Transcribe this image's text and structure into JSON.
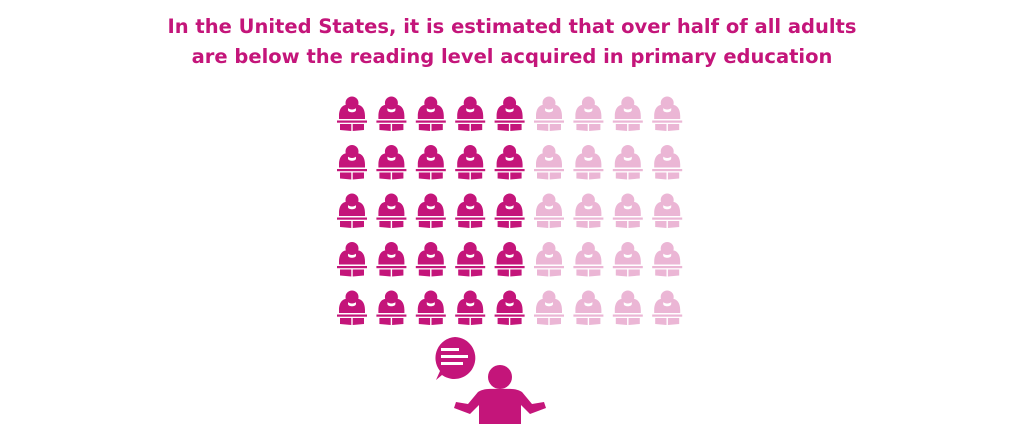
{
  "header": {
    "title_lines": [
      "In the United States, it is estimated that over half of all adults",
      "are below the reading level acquired in primary education"
    ]
  }
}
